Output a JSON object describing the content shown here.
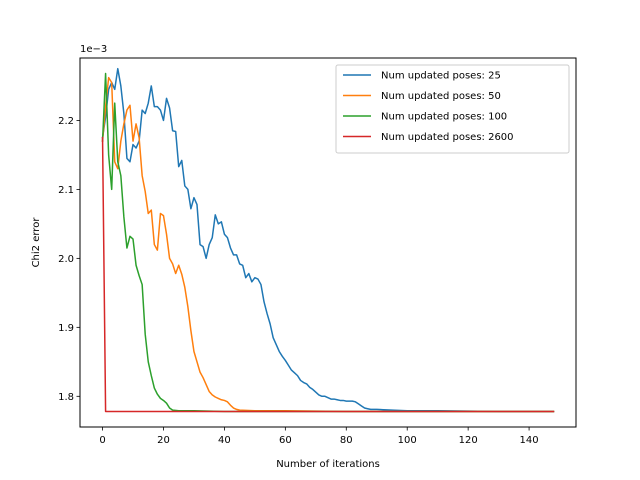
{
  "chart_data": {
    "type": "line",
    "title": "",
    "xlabel": "Number of iterations",
    "ylabel": "Chi2 error",
    "offset_text": "1e−3",
    "xlim": [
      -7.4,
      155.4
    ],
    "ylim": [
      1.7555,
      2.2905
    ],
    "xticks": [
      0,
      20,
      40,
      60,
      80,
      100,
      120,
      140
    ],
    "xtick_labels": [
      "0",
      "20",
      "40",
      "60",
      "80",
      "100",
      "120",
      "140"
    ],
    "yticks": [
      1.8,
      1.9,
      2.0,
      2.1,
      2.2
    ],
    "ytick_labels": [
      "1.8",
      "1.9",
      "2.0",
      "2.1",
      "2.2"
    ],
    "grid": false,
    "legend_position": "upper-right",
    "series": [
      {
        "name": "Num updated poses: 25",
        "color": "#1f77b4",
        "points": [
          [
            0,
            2.175
          ],
          [
            1,
            2.205
          ],
          [
            2,
            2.245
          ],
          [
            3,
            2.255
          ],
          [
            4,
            2.245
          ],
          [
            5,
            2.275
          ],
          [
            6,
            2.25
          ],
          [
            7,
            2.21
          ],
          [
            8,
            2.145
          ],
          [
            9,
            2.14
          ],
          [
            10,
            2.165
          ],
          [
            11,
            2.16
          ],
          [
            12,
            2.17
          ],
          [
            13,
            2.215
          ],
          [
            14,
            2.21
          ],
          [
            15,
            2.225
          ],
          [
            16,
            2.25
          ],
          [
            17,
            2.22
          ],
          [
            18,
            2.22
          ],
          [
            19,
            2.215
          ],
          [
            20,
            2.2
          ],
          [
            21,
            2.232
          ],
          [
            22,
            2.218
          ],
          [
            23,
            2.185
          ],
          [
            24,
            2.184
          ],
          [
            25,
            2.133
          ],
          [
            26,
            2.142
          ],
          [
            27,
            2.105
          ],
          [
            28,
            2.1
          ],
          [
            29,
            2.072
          ],
          [
            30,
            2.088
          ],
          [
            31,
            2.078
          ],
          [
            32,
            2.02
          ],
          [
            33,
            2.017
          ],
          [
            34,
            2.0
          ],
          [
            35,
            2.02
          ],
          [
            36,
            2.03
          ],
          [
            37,
            2.063
          ],
          [
            38,
            2.05
          ],
          [
            39,
            2.053
          ],
          [
            40,
            2.035
          ],
          [
            41,
            2.03
          ],
          [
            42,
            2.015
          ],
          [
            43,
            2.005
          ],
          [
            44,
            2.005
          ],
          [
            45,
            1.992
          ],
          [
            46,
            1.99
          ],
          [
            47,
            1.972
          ],
          [
            48,
            1.978
          ],
          [
            49,
            1.966
          ],
          [
            50,
            1.972
          ],
          [
            51,
            1.97
          ],
          [
            52,
            1.962
          ],
          [
            53,
            1.937
          ],
          [
            54,
            1.92
          ],
          [
            55,
            1.905
          ],
          [
            56,
            1.885
          ],
          [
            57,
            1.875
          ],
          [
            58,
            1.865
          ],
          [
            59,
            1.858
          ],
          [
            60,
            1.852
          ],
          [
            61,
            1.845
          ],
          [
            62,
            1.838
          ],
          [
            63,
            1.834
          ],
          [
            64,
            1.83
          ],
          [
            65,
            1.823
          ],
          [
            66,
            1.82
          ],
          [
            67,
            1.818
          ],
          [
            68,
            1.813
          ],
          [
            69,
            1.81
          ],
          [
            70,
            1.806
          ],
          [
            71,
            1.802
          ],
          [
            72,
            1.8
          ],
          [
            73,
            1.8
          ],
          [
            74,
            1.798
          ],
          [
            75,
            1.796
          ],
          [
            76,
            1.796
          ],
          [
            77,
            1.795
          ],
          [
            78,
            1.794
          ],
          [
            79,
            1.794
          ],
          [
            80,
            1.793
          ],
          [
            81,
            1.793
          ],
          [
            82,
            1.793
          ],
          [
            83,
            1.792
          ],
          [
            84,
            1.789
          ],
          [
            85,
            1.786
          ],
          [
            86,
            1.783
          ],
          [
            87,
            1.782
          ],
          [
            88,
            1.781
          ],
          [
            90,
            1.781
          ],
          [
            95,
            1.78
          ],
          [
            100,
            1.779
          ],
          [
            110,
            1.779
          ],
          [
            130,
            1.778
          ],
          [
            148,
            1.778
          ]
        ]
      },
      {
        "name": "Num updated poses: 50",
        "color": "#ff7f0e",
        "points": [
          [
            0,
            2.17
          ],
          [
            1,
            2.22
          ],
          [
            2,
            2.262
          ],
          [
            3,
            2.255
          ],
          [
            4,
            2.14
          ],
          [
            5,
            2.13
          ],
          [
            6,
            2.17
          ],
          [
            7,
            2.195
          ],
          [
            8,
            2.215
          ],
          [
            9,
            2.222
          ],
          [
            10,
            2.17
          ],
          [
            11,
            2.195
          ],
          [
            12,
            2.175
          ],
          [
            13,
            2.12
          ],
          [
            14,
            2.097
          ],
          [
            15,
            2.065
          ],
          [
            16,
            2.07
          ],
          [
            17,
            2.02
          ],
          [
            18,
            2.012
          ],
          [
            19,
            2.065
          ],
          [
            20,
            2.062
          ],
          [
            21,
            2.035
          ],
          [
            22,
            2.0
          ],
          [
            23,
            1.992
          ],
          [
            24,
            1.978
          ],
          [
            25,
            1.99
          ],
          [
            26,
            1.977
          ],
          [
            27,
            1.958
          ],
          [
            28,
            1.93
          ],
          [
            29,
            1.895
          ],
          [
            30,
            1.865
          ],
          [
            31,
            1.85
          ],
          [
            32,
            1.835
          ],
          [
            33,
            1.827
          ],
          [
            34,
            1.817
          ],
          [
            35,
            1.807
          ],
          [
            36,
            1.802
          ],
          [
            37,
            1.799
          ],
          [
            38,
            1.797
          ],
          [
            39,
            1.795
          ],
          [
            40,
            1.794
          ],
          [
            41,
            1.792
          ],
          [
            42,
            1.787
          ],
          [
            43,
            1.783
          ],
          [
            44,
            1.781
          ],
          [
            45,
            1.78
          ],
          [
            50,
            1.779
          ],
          [
            60,
            1.779
          ],
          [
            80,
            1.778
          ],
          [
            148,
            1.778
          ]
        ]
      },
      {
        "name": "Num updated poses: 100",
        "color": "#2ca02c",
        "points": [
          [
            0,
            2.17
          ],
          [
            1,
            2.268
          ],
          [
            2,
            2.15
          ],
          [
            3,
            2.1
          ],
          [
            4,
            2.225
          ],
          [
            5,
            2.14
          ],
          [
            6,
            2.12
          ],
          [
            7,
            2.06
          ],
          [
            8,
            2.015
          ],
          [
            9,
            2.032
          ],
          [
            10,
            2.028
          ],
          [
            11,
            1.99
          ],
          [
            12,
            1.975
          ],
          [
            13,
            1.962
          ],
          [
            14,
            1.89
          ],
          [
            15,
            1.85
          ],
          [
            16,
            1.83
          ],
          [
            17,
            1.812
          ],
          [
            18,
            1.803
          ],
          [
            19,
            1.797
          ],
          [
            20,
            1.794
          ],
          [
            21,
            1.79
          ],
          [
            22,
            1.783
          ],
          [
            23,
            1.78
          ],
          [
            25,
            1.779
          ],
          [
            30,
            1.779
          ],
          [
            40,
            1.778
          ],
          [
            148,
            1.778
          ]
        ]
      },
      {
        "name": "Num updated poses: 2600",
        "color": "#d62728",
        "points": [
          [
            0,
            2.175
          ],
          [
            1,
            1.778
          ],
          [
            5,
            1.778
          ],
          [
            148,
            1.778
          ]
        ]
      }
    ]
  }
}
